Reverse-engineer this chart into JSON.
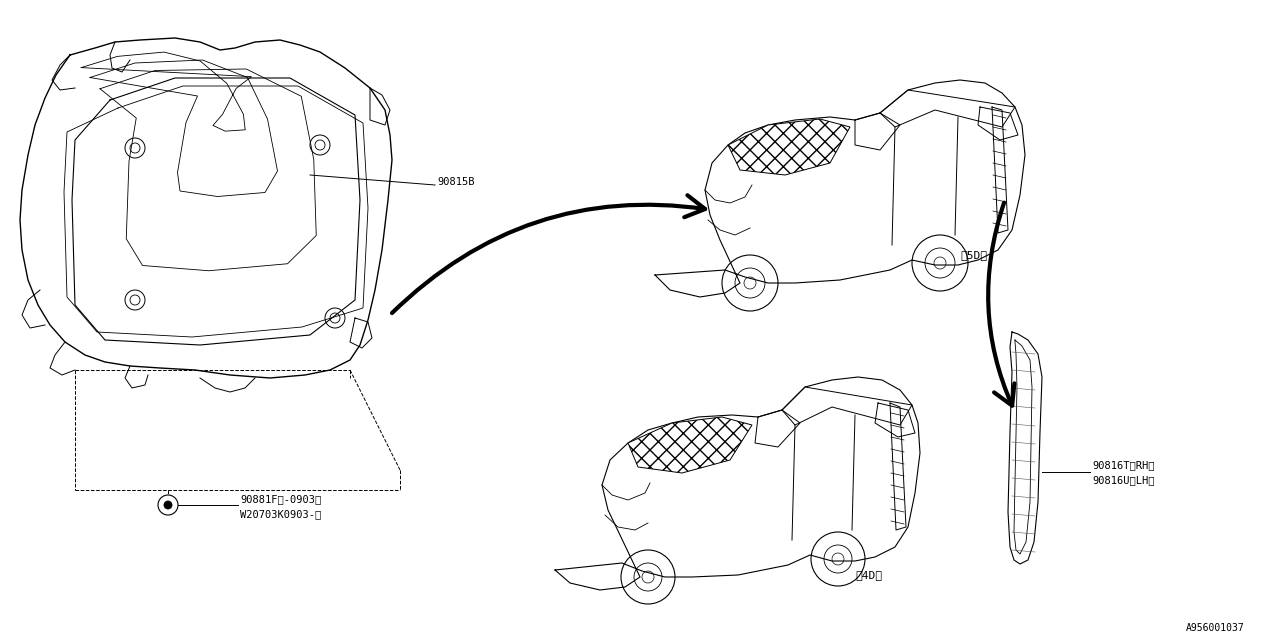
{
  "bg_color": "#ffffff",
  "line_color": "#000000",
  "fig_width": 12.8,
  "fig_height": 6.4,
  "diagram_ref": "A956001037",
  "label_90815B": "90815B",
  "label_clip1": "90881F（-0903）",
  "label_clip2": "W20703K0903-）",
  "label_rh": "90816T＜RH＞",
  "label_lh": "90816U＜LH＞",
  "label_5d": "＜5D＞",
  "label_4d": "＜4D＞",
  "font_size": 7.5,
  "font_family": "DejaVu Sans Mono"
}
